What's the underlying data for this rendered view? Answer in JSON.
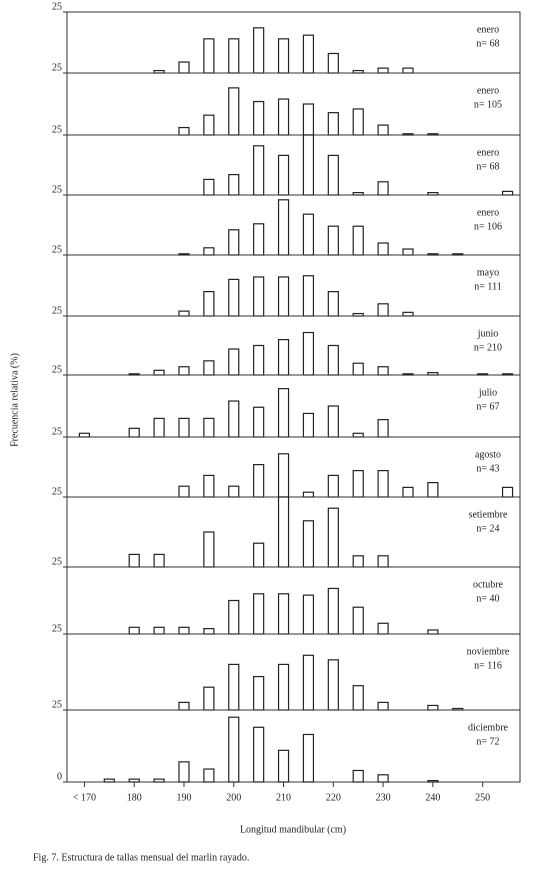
{
  "chart_data": [
    {
      "type": "bar",
      "title": "enero",
      "subtitle": "n= 68",
      "ylim": [
        0,
        25
      ],
      "yticks": [
        25
      ],
      "xlim": [
        166.5,
        257.5
      ],
      "x": [
        185,
        190,
        195,
        200,
        205,
        210,
        215,
        220,
        225,
        230,
        235
      ],
      "values": [
        1,
        4.5,
        14,
        14,
        18.5,
        14,
        15.5,
        8,
        1,
        2,
        2
      ]
    },
    {
      "type": "bar",
      "title": "enero",
      "subtitle": "n= 105",
      "ylim": [
        0,
        25
      ],
      "yticks": [
        25
      ],
      "xlim": [
        166.5,
        257.5
      ],
      "x": [
        190,
        195,
        200,
        205,
        210,
        215,
        220,
        225,
        230,
        235,
        240
      ],
      "values": [
        3,
        8,
        19,
        13.5,
        14.5,
        12.5,
        9,
        10.5,
        4,
        0.5,
        0.5
      ]
    },
    {
      "type": "bar",
      "title": "enero",
      "subtitle": "n= 68",
      "ylim": [
        0,
        25
      ],
      "yticks": [
        25
      ],
      "xlim": [
        166.5,
        257.5
      ],
      "x": [
        195,
        200,
        205,
        210,
        215,
        220,
        225,
        230,
        240,
        255
      ],
      "values": [
        6.5,
        8.5,
        20.5,
        16.5,
        25,
        16.5,
        1,
        5.5,
        1,
        1.5
      ]
    },
    {
      "type": "bar",
      "title": "enero",
      "subtitle": "n= 106",
      "ylim": [
        0,
        25
      ],
      "yticks": [
        25
      ],
      "xlim": [
        166.5,
        257.5
      ],
      "x": [
        190,
        195,
        200,
        205,
        210,
        215,
        220,
        225,
        230,
        235,
        240,
        245
      ],
      "values": [
        0.5,
        3,
        10.5,
        13,
        23,
        17,
        12,
        12,
        5,
        2.5,
        0.5,
        0.5
      ]
    },
    {
      "type": "bar",
      "title": "mayo",
      "subtitle": "n= 111",
      "ylim": [
        0,
        25
      ],
      "yticks": [
        25
      ],
      "xlim": [
        166.5,
        257.5
      ],
      "x": [
        190,
        195,
        200,
        205,
        210,
        215,
        220,
        225,
        230,
        235
      ],
      "values": [
        2,
        10,
        15,
        16,
        16,
        16.5,
        10,
        1,
        5,
        1.5
      ]
    },
    {
      "type": "bar",
      "title": "junio",
      "subtitle": "n= 210",
      "ylim": [
        0,
        25
      ],
      "yticks": [
        25
      ],
      "xlim": [
        166.5,
        257.5
      ],
      "x": [
        180,
        185,
        190,
        195,
        200,
        205,
        210,
        215,
        220,
        225,
        230,
        235,
        240,
        250,
        255
      ],
      "values": [
        0.5,
        2,
        3.5,
        6,
        11,
        12.5,
        15,
        18,
        12.5,
        5,
        3.5,
        0.5,
        1,
        0.5,
        0.5
      ]
    },
    {
      "type": "bar",
      "title": "julio",
      "subtitle": "n= 67",
      "ylim": [
        0,
        25
      ],
      "yticks": [
        25
      ],
      "xlim": [
        166.5,
        257.5
      ],
      "x": [
        170,
        180,
        185,
        190,
        195,
        200,
        205,
        210,
        215,
        220,
        225,
        230
      ],
      "values": [
        1.5,
        3.5,
        7.5,
        7.5,
        7.5,
        14.5,
        12,
        19.5,
        9.5,
        12.5,
        1.5,
        7
      ]
    },
    {
      "type": "bar",
      "title": "agosto",
      "subtitle": "n= 43",
      "ylim": [
        0,
        25
      ],
      "yticks": [
        25
      ],
      "xlim": [
        166.5,
        257.5
      ],
      "x": [
        190,
        195,
        200,
        205,
        210,
        215,
        220,
        225,
        230,
        235,
        240,
        255
      ],
      "values": [
        4.5,
        9,
        4.5,
        13.5,
        18,
        2,
        9,
        11,
        11,
        4,
        6,
        4
      ]
    },
    {
      "type": "bar",
      "title": "setiembre",
      "subtitle": "n= 24",
      "ylim": [
        0,
        25
      ],
      "yticks": [
        25
      ],
      "xlim": [
        166.5,
        257.5
      ],
      "x": [
        180,
        185,
        195,
        205,
        210,
        215,
        220,
        225,
        230
      ],
      "values": [
        4.5,
        4.5,
        12.5,
        8.5,
        25,
        16.5,
        21,
        4,
        4
      ]
    },
    {
      "type": "bar",
      "title": "octubre",
      "subtitle": "n= 40",
      "ylim": [
        0,
        25
      ],
      "yticks": [
        25
      ],
      "xlim": [
        166.5,
        257.5
      ],
      "x": [
        180,
        185,
        190,
        195,
        200,
        205,
        210,
        215,
        220,
        225,
        230,
        240
      ],
      "values": [
        2.5,
        2.5,
        2.5,
        2,
        12.5,
        15,
        15,
        14.5,
        17,
        10,
        4,
        1.5
      ]
    },
    {
      "type": "bar",
      "title": "noviembre",
      "subtitle": "n= 116",
      "ylim": [
        0,
        25
      ],
      "yticks": [
        25
      ],
      "xlim": [
        166.5,
        257.5
      ],
      "x": [
        190,
        195,
        200,
        205,
        210,
        215,
        220,
        225,
        230,
        240,
        245
      ],
      "values": [
        2.5,
        7.5,
        15,
        11,
        15,
        18,
        16.5,
        8,
        2.5,
        1.5,
        0.5
      ]
    },
    {
      "type": "bar",
      "title": "diciembre",
      "subtitle": "n= 72",
      "ylim": [
        0,
        25
      ],
      "yticks": [
        0,
        25
      ],
      "xlim": [
        166.5,
        257.5
      ],
      "x": [
        175,
        180,
        185,
        190,
        195,
        200,
        205,
        210,
        215,
        225,
        230,
        240
      ],
      "values": [
        1,
        1,
        1,
        7,
        4.5,
        22.5,
        19,
        11,
        16.5,
        4,
        2.5,
        0.5
      ],
      "xticks": [
        {
          "value": 170,
          "label": "< 170"
        },
        180,
        190,
        200,
        210,
        220,
        230,
        240,
        250
      ],
      "xlabel": "Longitud mandibular (cm)"
    }
  ],
  "figure": {
    "ylabel": "Frecuencia relativa (%)",
    "caption": "Fig. 7. Estructura de tallas mensual del marlin rayado."
  }
}
